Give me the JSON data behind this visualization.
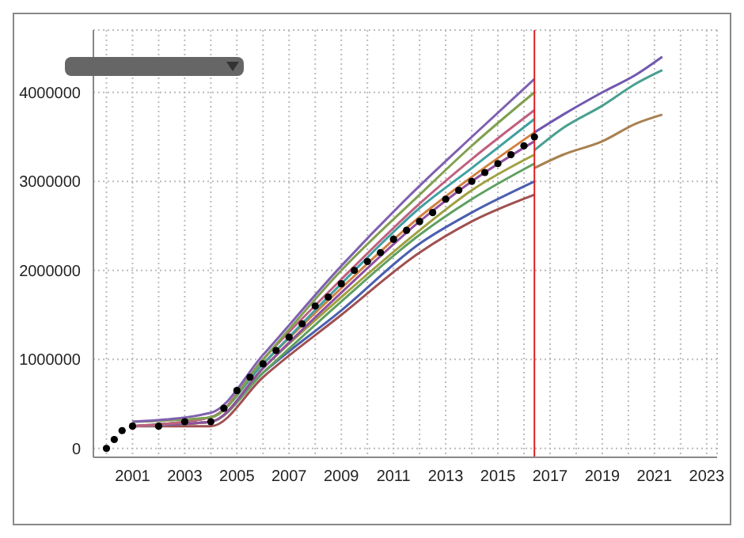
{
  "chart_data": {
    "type": "line",
    "xlim": [
      1999.5,
      2023.4
    ],
    "ylim": [
      -100000,
      4700000
    ],
    "xticks": [
      {
        "value": 2000,
        "label": null
      },
      2001,
      {
        "value": 2002,
        "label": null
      },
      2003,
      {
        "value": 2004,
        "label": null
      },
      2005,
      {
        "value": 2006,
        "label": null
      },
      2007,
      {
        "value": 2008,
        "label": null
      },
      2009,
      {
        "value": 2010,
        "label": null
      },
      2011,
      {
        "value": 2012,
        "label": null
      },
      2013,
      {
        "value": 2014,
        "label": null
      },
      2015,
      {
        "value": 2016,
        "label": null
      },
      2017,
      {
        "value": 2018,
        "label": null
      },
      2019,
      {
        "value": 2020,
        "label": null
      },
      2021,
      {
        "value": 2022,
        "label": null
      },
      2023
    ],
    "yticks": [
      0,
      1000000,
      2000000,
      3000000,
      4000000
    ],
    "grid": true,
    "ref_lines": [
      {
        "axis": "x",
        "value": 2016.4,
        "color": "#e02020"
      }
    ],
    "series": [
      {
        "color": "#a05050",
        "marker": "none",
        "x": [
          2001,
          2004,
          2006,
          2009,
          2012,
          2014,
          2016.4
        ],
        "values": [
          250000,
          250000,
          800000,
          1500000,
          2200000,
          2550000,
          2850000
        ]
      },
      {
        "color": "#4a5fb0",
        "marker": "none",
        "x": [
          2001,
          2004,
          2006,
          2009,
          2012,
          2014,
          2016.4
        ],
        "values": [
          250000,
          300000,
          850000,
          1550000,
          2300000,
          2650000,
          3000000
        ]
      },
      {
        "color": "#60a060",
        "marker": "none",
        "x": [
          2001,
          2004,
          2006,
          2009,
          2012,
          2014,
          2016.4
        ],
        "values": [
          250000,
          300000,
          850000,
          1650000,
          2400000,
          2800000,
          3200000
        ]
      },
      {
        "color": "#a0a040",
        "marker": "none",
        "x": [
          2001,
          2004,
          2006,
          2009,
          2012,
          2014,
          2016.4
        ],
        "values": [
          250000,
          300000,
          900000,
          1700000,
          2450000,
          2900000,
          3300000
        ]
      },
      {
        "color": "#9050a0",
        "marker": "none",
        "x": [
          2001,
          2004,
          2006,
          2009,
          2012,
          2014,
          2016.4
        ],
        "values": [
          250000,
          300000,
          900000,
          1750000,
          2550000,
          3000000,
          3450000
        ]
      },
      {
        "color": "#d08040",
        "marker": "none",
        "x": [
          2001,
          2004,
          2006,
          2009,
          2012,
          2014,
          2016.4
        ],
        "values": [
          250000,
          350000,
          950000,
          1800000,
          2600000,
          3050000,
          3550000
        ]
      },
      {
        "color": "#40a0a0",
        "marker": "none",
        "x": [
          2001,
          2004,
          2006,
          2009,
          2012,
          2014,
          2016.4
        ],
        "values": [
          250000,
          350000,
          950000,
          1850000,
          2700000,
          3150000,
          3700000
        ]
      },
      {
        "color": "#c06080",
        "marker": "none",
        "x": [
          2001,
          2004,
          2006,
          2009,
          2012,
          2014,
          2016.4
        ],
        "values": [
          250000,
          350000,
          1000000,
          1900000,
          2750000,
          3250000,
          3800000
        ]
      },
      {
        "color": "#80a050",
        "marker": "none",
        "x": [
          2001,
          2004,
          2006,
          2009,
          2012,
          2014,
          2016.4
        ],
        "values": [
          300000,
          350000,
          1000000,
          2000000,
          2850000,
          3400000,
          4000000
        ]
      },
      {
        "color": "#8060b0",
        "marker": "none",
        "x": [
          2001,
          2004,
          2006,
          2009,
          2012,
          2014,
          2016.4
        ],
        "values": [
          300000,
          400000,
          1050000,
          2050000,
          2950000,
          3500000,
          4150000
        ]
      },
      {
        "color": "#7058b0",
        "marker": "none",
        "x": [
          2016.4,
          2017.5,
          2019,
          2020.3,
          2021.3
        ],
        "values": [
          3550000,
          3750000,
          4000000,
          4200000,
          4400000
        ]
      },
      {
        "color": "#4aa090",
        "marker": "none",
        "x": [
          2016.4,
          2017.5,
          2019,
          2020.3,
          2021.3
        ],
        "values": [
          3350000,
          3600000,
          3850000,
          4100000,
          4250000
        ]
      },
      {
        "color": "#a88050",
        "marker": "none",
        "x": [
          2016.4,
          2017.5,
          2019,
          2020.3,
          2021.3
        ],
        "values": [
          3150000,
          3300000,
          3450000,
          3650000,
          3750000
        ]
      },
      {
        "type": "scatter",
        "color": "#000000",
        "marker": "circle",
        "x": [
          2000,
          2000.3,
          2000.6,
          2001,
          2002,
          2003,
          2004,
          2004.5,
          2005,
          2005.5,
          2006,
          2006.5,
          2007,
          2007.5,
          2008,
          2008.5,
          2009,
          2009.5,
          2010,
          2010.5,
          2011,
          2011.5,
          2012,
          2012.5,
          2013,
          2013.5,
          2014,
          2014.5,
          2015,
          2015.5,
          2016,
          2016.4
        ],
        "values": [
          0,
          100000,
          200000,
          250000,
          250000,
          300000,
          300000,
          450000,
          650000,
          800000,
          950000,
          1100000,
          1250000,
          1400000,
          1600000,
          1700000,
          1850000,
          2000000,
          2100000,
          2200000,
          2350000,
          2450000,
          2550000,
          2650000,
          2800000,
          2900000,
          3000000,
          3100000,
          3200000,
          3300000,
          3400000,
          3500000
        ]
      }
    ]
  }
}
